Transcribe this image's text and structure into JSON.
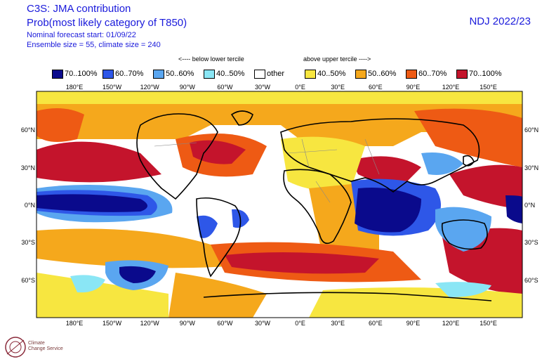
{
  "header": {
    "title": "C3S: JMA contribution",
    "subtitle": "Prob(most likely category of T850)",
    "forecast_start": "Nominal forecast start: 01/09/22",
    "ensemble": "Ensemble size = 55, climate size = 240",
    "season": "NDJ 2022/23"
  },
  "legend": {
    "below_note": "<---- below lower tercile",
    "above_note": "above upper tercile ---->",
    "items": [
      {
        "label": "70..100%",
        "color": "#0a0a8c"
      },
      {
        "label": "60..70%",
        "color": "#2e57e8"
      },
      {
        "label": "50..60%",
        "color": "#5aa6f0"
      },
      {
        "label": "40..50%",
        "color": "#8ae6f5"
      },
      {
        "label": "other",
        "color": "#ffffff"
      },
      {
        "label": "40..50%",
        "color": "#f7e640"
      },
      {
        "label": "50..60%",
        "color": "#f5a81c"
      },
      {
        "label": "60..70%",
        "color": "#ee5a14"
      },
      {
        "label": "70..100%",
        "color": "#c4142c"
      }
    ]
  },
  "axes": {
    "lon_labels": [
      "180°E",
      "150°W",
      "120°W",
      "90°W",
      "60°W",
      "30°W",
      "0°E",
      "30°E",
      "60°E",
      "90°E",
      "120°E",
      "150°E"
    ],
    "lat_labels": [
      "60°N",
      "30°N",
      "0°N",
      "30°S",
      "60°S"
    ]
  },
  "logo": {
    "line1": "Climate",
    "line2": "Change Service"
  }
}
